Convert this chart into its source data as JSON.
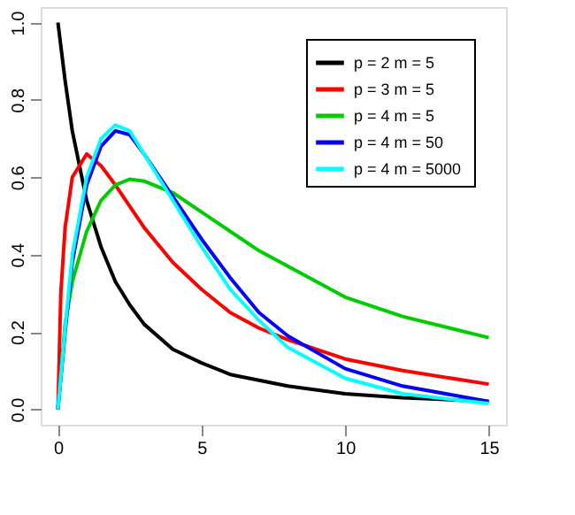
{
  "chart_data": {
    "type": "line",
    "xlim": [
      -0.6,
      15.6
    ],
    "ylim": [
      -0.04,
      1.04
    ],
    "xticks": [
      0,
      5,
      10,
      15
    ],
    "yticks": [
      {
        "value": 0,
        "label": "0.0"
      },
      0.2,
      0.4,
      0.6,
      0.8,
      {
        "value": 1,
        "label": "1.0"
      }
    ],
    "grid": false,
    "legend": "top right",
    "line_style": "solid",
    "marker": "none",
    "x": [
      0,
      0.25,
      0.5,
      1,
      1.5,
      2,
      2.5,
      3,
      4,
      5,
      6,
      7,
      8,
      10,
      12,
      15
    ],
    "series": [
      {
        "name": "p = 2  m = 5",
        "color": "#000000",
        "values": [
          1.0,
          0.85,
          0.72,
          0.54,
          0.42,
          0.33,
          0.27,
          0.22,
          0.155,
          0.12,
          0.09,
          0.075,
          0.06,
          0.04,
          0.03,
          0.02
        ]
      },
      {
        "name": "p = 3  m = 5",
        "color": "#ff0000",
        "x": [
          0,
          0.1,
          0.25,
          0.5,
          1,
          1.5,
          2,
          3,
          4,
          5,
          6,
          7,
          8,
          10,
          12,
          15
        ],
        "values": [
          0,
          0.3,
          0.47,
          0.6,
          0.66,
          0.63,
          0.58,
          0.47,
          0.38,
          0.31,
          0.25,
          0.21,
          0.18,
          0.13,
          0.1,
          0.065
        ]
      },
      {
        "name": "p = 4  m = 5",
        "color": "#00cd00",
        "values": [
          0,
          0.22,
          0.33,
          0.46,
          0.54,
          0.58,
          0.595,
          0.59,
          0.56,
          0.51,
          0.46,
          0.41,
          0.37,
          0.29,
          0.24,
          0.185
        ]
      },
      {
        "name": "p = 4  m = 50",
        "color": "#0000ff",
        "values": [
          0,
          0.2,
          0.38,
          0.58,
          0.68,
          0.72,
          0.71,
          0.66,
          0.55,
          0.44,
          0.34,
          0.25,
          0.19,
          0.105,
          0.06,
          0.02
        ]
      },
      {
        "name": "p = 4  m = 5000",
        "color": "#00ffff",
        "values": [
          0,
          0.21,
          0.4,
          0.6,
          0.7,
          0.735,
          0.72,
          0.66,
          0.54,
          0.42,
          0.31,
          0.23,
          0.16,
          0.08,
          0.04,
          0.015
        ]
      }
    ]
  }
}
